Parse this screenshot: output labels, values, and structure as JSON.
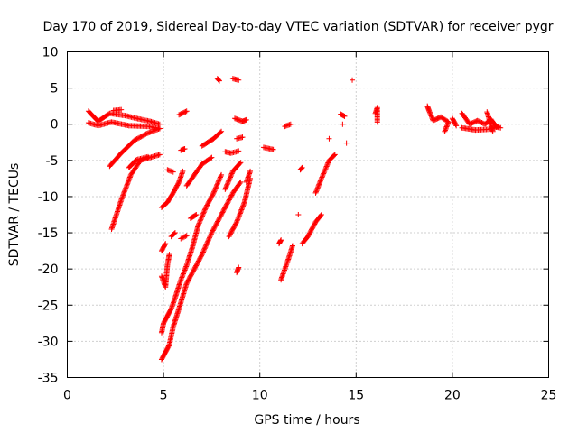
{
  "chart_data": {
    "type": "scatter",
    "title": "Day 170 of 2019, Sidereal Day-to-day VTEC variation (SDTVAR) for receiver pygr",
    "xlabel": "GPS time / hours",
    "ylabel": "SDTVAR / TECUs",
    "xlim": [
      0,
      25
    ],
    "ylim": [
      -35,
      10
    ],
    "xticks": [
      0,
      5,
      10,
      15,
      20,
      25
    ],
    "yticks": [
      -35,
      -30,
      -25,
      -20,
      -15,
      -10,
      -5,
      0,
      5,
      10
    ],
    "grid": true,
    "marker": "+",
    "color": "#ff0000",
    "tracks": [
      {
        "points": [
          [
            1.1,
            1.8
          ],
          [
            1.6,
            0.4
          ],
          [
            2.2,
            1.5
          ],
          [
            3.0,
            1.2
          ],
          [
            3.6,
            0.8
          ],
          [
            4.3,
            0.4
          ],
          [
            4.8,
            0.0
          ]
        ]
      },
      {
        "points": [
          [
            1.1,
            0.2
          ],
          [
            1.6,
            -0.2
          ],
          [
            2.3,
            0.3
          ],
          [
            3.2,
            -0.2
          ],
          [
            4.2,
            -0.3
          ],
          [
            4.8,
            -0.6
          ]
        ]
      },
      {
        "points": [
          [
            2.2,
            -5.8
          ],
          [
            2.8,
            -4.0
          ],
          [
            3.5,
            -2.2
          ],
          [
            4.2,
            -1.2
          ],
          [
            4.8,
            -0.6
          ]
        ]
      },
      {
        "points": [
          [
            2.3,
            -14.5
          ],
          [
            2.8,
            -10.5
          ],
          [
            3.3,
            -7.0
          ],
          [
            3.8,
            -5.0
          ],
          [
            4.3,
            -4.6
          ],
          [
            4.8,
            -4.2
          ]
        ]
      },
      {
        "points": [
          [
            2.4,
            1.9
          ],
          [
            2.8,
            2.0
          ]
        ]
      },
      {
        "points": [
          [
            3.2,
            -6.0
          ],
          [
            3.6,
            -4.9
          ],
          [
            4.2,
            -4.5
          ]
        ]
      },
      {
        "points": [
          [
            4.9,
            -11.5
          ],
          [
            5.2,
            -10.8
          ],
          [
            5.5,
            -9.5
          ],
          [
            5.8,
            -8.0
          ],
          [
            6.0,
            -6.5
          ]
        ]
      },
      {
        "points": [
          [
            4.9,
            -17.5
          ],
          [
            5.1,
            -16.5
          ]
        ]
      },
      {
        "points": [
          [
            4.9,
            -21.0
          ],
          [
            5.1,
            -22.5
          ],
          [
            5.2,
            -19.5
          ],
          [
            5.3,
            -18.0
          ]
        ]
      },
      {
        "points": [
          [
            4.9,
            -28.8
          ],
          [
            5.0,
            -27.5
          ],
          [
            5.2,
            -26.5
          ],
          [
            5.4,
            -25.5
          ],
          [
            5.6,
            -24.0
          ],
          [
            5.9,
            -21.5
          ],
          [
            6.2,
            -19.5
          ],
          [
            6.5,
            -17.0
          ],
          [
            6.8,
            -14.0
          ],
          [
            7.2,
            -11.5
          ],
          [
            7.6,
            -9.5
          ],
          [
            8.0,
            -7.0
          ]
        ]
      },
      {
        "points": [
          [
            4.9,
            -32.5
          ],
          [
            5.1,
            -31.5
          ],
          [
            5.3,
            -30.5
          ],
          [
            5.5,
            -28.0
          ],
          [
            5.8,
            -25.5
          ],
          [
            6.2,
            -22.0
          ],
          [
            6.6,
            -20.0
          ],
          [
            7.0,
            -18.0
          ],
          [
            7.5,
            -15.0
          ],
          [
            8.0,
            -12.5
          ],
          [
            8.6,
            -9.5
          ],
          [
            9.0,
            -8.0
          ]
        ]
      },
      {
        "points": [
          [
            5.2,
            -6.3
          ],
          [
            5.5,
            -6.6
          ]
        ]
      },
      {
        "points": [
          [
            5.4,
            -15.5
          ],
          [
            5.6,
            -15.0
          ]
        ]
      },
      {
        "points": [
          [
            5.8,
            1.3
          ],
          [
            6.2,
            1.8
          ]
        ]
      },
      {
        "points": [
          [
            5.9,
            -3.6
          ],
          [
            6.1,
            -3.4
          ]
        ]
      },
      {
        "points": [
          [
            5.9,
            -15.8
          ],
          [
            6.2,
            -15.4
          ]
        ]
      },
      {
        "points": [
          [
            6.2,
            -8.5
          ],
          [
            6.6,
            -7.0
          ],
          [
            7.0,
            -5.5
          ],
          [
            7.5,
            -4.6
          ]
        ]
      },
      {
        "points": [
          [
            6.4,
            -13.0
          ],
          [
            6.7,
            -12.5
          ]
        ]
      },
      {
        "points": [
          [
            7.0,
            -3.0
          ],
          [
            7.6,
            -2.0
          ],
          [
            8.0,
            -1.0
          ]
        ]
      },
      {
        "points": [
          [
            7.8,
            6.3
          ],
          [
            7.9,
            6.0
          ]
        ]
      },
      {
        "points": [
          [
            8.2,
            -3.8
          ],
          [
            8.5,
            -4.0
          ],
          [
            8.9,
            -3.7
          ]
        ]
      },
      {
        "points": [
          [
            8.2,
            -9.0
          ],
          [
            8.6,
            -6.5
          ],
          [
            9.0,
            -5.3
          ]
        ]
      },
      {
        "points": [
          [
            8.4,
            -15.5
          ],
          [
            8.8,
            -13.5
          ],
          [
            9.2,
            -10.8
          ],
          [
            9.5,
            -7.5
          ]
        ]
      },
      {
        "points": [
          [
            8.6,
            6.3
          ],
          [
            8.9,
            6.1
          ]
        ]
      },
      {
        "points": [
          [
            8.7,
            0.8
          ],
          [
            9.1,
            0.4
          ],
          [
            9.3,
            0.6
          ]
        ]
      },
      {
        "points": [
          [
            8.8,
            -2.0
          ],
          [
            9.1,
            -1.8
          ]
        ]
      },
      {
        "points": [
          [
            8.8,
            -20.5
          ],
          [
            8.9,
            -19.8
          ]
        ]
      },
      {
        "points": [
          [
            9.3,
            -8.0
          ],
          [
            9.5,
            -6.5
          ]
        ]
      },
      {
        "points": [
          [
            10.2,
            -3.2
          ],
          [
            10.7,
            -3.5
          ]
        ]
      },
      {
        "points": [
          [
            11.0,
            -16.5
          ],
          [
            11.1,
            -16.0
          ]
        ]
      },
      {
        "points": [
          [
            11.1,
            -21.5
          ],
          [
            11.3,
            -20.0
          ],
          [
            11.5,
            -18.5
          ],
          [
            11.7,
            -16.8
          ]
        ]
      },
      {
        "points": [
          [
            11.3,
            -0.3
          ],
          [
            11.6,
            0.0
          ]
        ]
      },
      {
        "points": [
          [
            12.0,
            -12.5
          ]
        ]
      },
      {
        "points": [
          [
            12.1,
            -6.3
          ],
          [
            12.2,
            -6.0
          ]
        ]
      },
      {
        "points": [
          [
            12.2,
            -16.5
          ],
          [
            12.5,
            -15.5
          ],
          [
            12.9,
            -13.5
          ],
          [
            13.2,
            -12.5
          ]
        ]
      },
      {
        "points": [
          [
            12.9,
            -9.5
          ],
          [
            13.2,
            -7.5
          ],
          [
            13.6,
            -5.0
          ],
          [
            13.9,
            -4.2
          ]
        ]
      },
      {
        "points": [
          [
            13.6,
            -2.0
          ]
        ]
      },
      {
        "points": [
          [
            14.2,
            1.4
          ],
          [
            14.4,
            1.1
          ]
        ]
      },
      {
        "points": [
          [
            14.3,
            0.0
          ]
        ]
      },
      {
        "points": [
          [
            14.5,
            -2.6
          ]
        ]
      },
      {
        "points": [
          [
            14.8,
            6.1
          ]
        ]
      },
      {
        "points": [
          [
            16.0,
            1.5
          ],
          [
            16.1,
            2.3
          ],
          [
            16.1,
            0.3
          ]
        ]
      },
      {
        "points": [
          [
            18.7,
            2.5
          ],
          [
            18.8,
            1.8
          ],
          [
            19.0,
            0.5
          ],
          [
            19.4,
            1.0
          ],
          [
            19.8,
            0.3
          ],
          [
            19.6,
            -1.0
          ]
        ]
      },
      {
        "points": [
          [
            20.0,
            0.8
          ],
          [
            20.2,
            -0.2
          ]
        ]
      },
      {
        "points": [
          [
            20.5,
            1.5
          ],
          [
            20.9,
            0.0
          ],
          [
            21.3,
            0.5
          ],
          [
            21.7,
            0.0
          ],
          [
            22.0,
            0.7
          ],
          [
            22.3,
            -0.4
          ],
          [
            22.5,
            -0.5
          ]
        ]
      },
      {
        "points": [
          [
            20.5,
            -0.5
          ],
          [
            21.2,
            -0.8
          ],
          [
            21.9,
            -0.7
          ],
          [
            22.4,
            -0.3
          ]
        ]
      },
      {
        "points": [
          [
            21.8,
            1.7
          ],
          [
            22.1,
            -1.0
          ]
        ]
      }
    ]
  }
}
